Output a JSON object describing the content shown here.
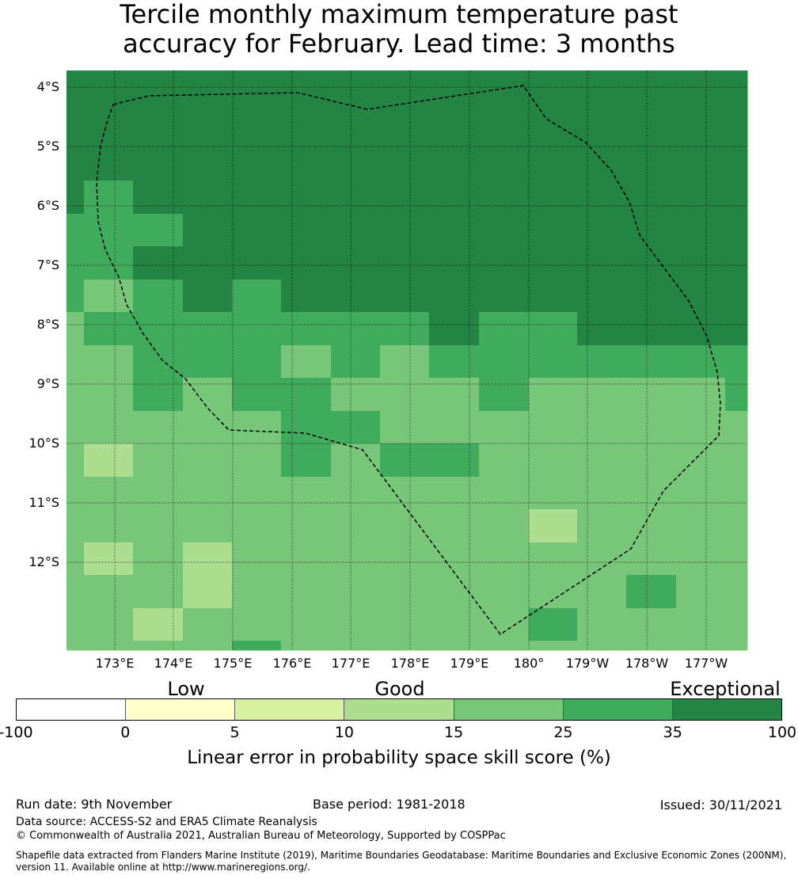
{
  "title": {
    "line1": "Tercile monthly maximum temperature past",
    "line2": "accuracy for February. Lead time: 3 months"
  },
  "map": {
    "lat_labels": [
      "4°S",
      "5°S",
      "6°S",
      "7°S",
      "8°S",
      "9°S",
      "10°S",
      "11°S",
      "12°S"
    ],
    "lon_labels": [
      "173°E",
      "174°E",
      "175°E",
      "176°E",
      "177°E",
      "178°E",
      "179°E",
      "180°",
      "179°W",
      "178°W",
      "177°W"
    ],
    "category_colors": {
      "D": "#238443",
      "M": "#41ab5d",
      "L": "#78c679",
      "P": "#addd8e",
      "Y": "#d9f0a3",
      "W": "#ffffcc"
    },
    "grid_rows": [
      "DDDDDDDDDDDDDDD",
      "DDDDDDDDDDDDDDD",
      "DDDDDDDDDDDDDDD",
      "DDDDDDDDDDDDDDD",
      "DMDDDDDDDDDDDDD",
      "MMMDDDDDDDDDDDD",
      "MMDDDDDDDDDDDDD",
      "MLMDMDDDDDDDDDD",
      "LMMMMMMMDMMDDDD",
      "LLMMMLMLMMMMMMM",
      "LLMLMMLLLMLLLLM",
      "LLLLLMMLLLLLLLL",
      "LPLLLMLMMLLLLLL",
      "LLLLLLLLLLLLLLL",
      "LLLLLLLLLLPLLLL",
      "LPLPLLLLLLLLLLL",
      "LLLPLLLLLLLLMLL",
      "LLPLLLLLLLMLLLL",
      "LLLLMLLLLLLLLLL"
    ]
  },
  "colorbar": {
    "categories": [
      "Low",
      "Good",
      "Exceptional"
    ],
    "ticks": [
      "-100",
      "0",
      "5",
      "10",
      "15",
      "25",
      "35",
      "100"
    ],
    "colors": [
      "#ffffff",
      "#ffffcc",
      "#d9f0a3",
      "#addd8e",
      "#78c679",
      "#41ab5d",
      "#238443"
    ],
    "label": "Linear error in probability space skill score (%)"
  },
  "footer": {
    "run_date": "Run date: 9th November",
    "base_period": "Base period: 1981-2018",
    "issued": "Issued: 30/11/2021",
    "data_source": "Data source: ACCESS-S2 and ERA5 Climate Reanalysis",
    "copyright": "© Commonwealth of Australia 2021, Australian Bureau of Meteorology, Supported by COSPPac",
    "shapefile_line1": "Shapefile data extracted from Flanders Marine Institute (2019), Maritime Boundaries Geodatabase: Maritime Boundaries and Exclusive Economic Zones (200NM),",
    "shapefile_line2": "version 11. Available online at http://www.marineregions.org/."
  }
}
